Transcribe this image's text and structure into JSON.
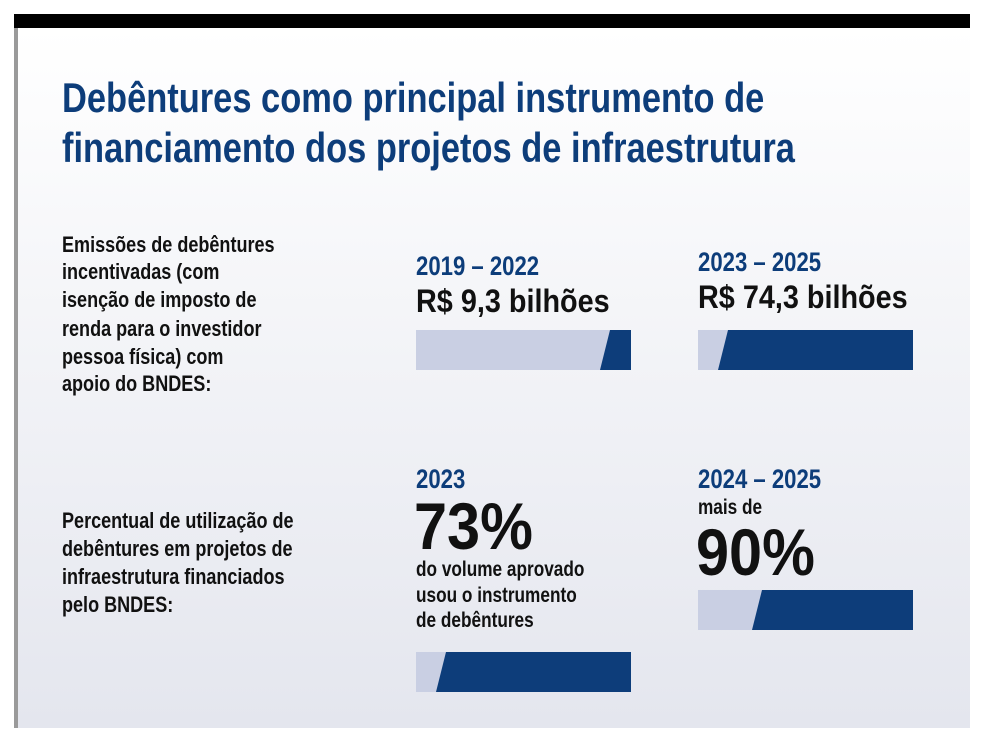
{
  "header": {
    "title": [
      "Debêntures como principal instrumento de",
      "financiamento dos projetos de infraestrutura"
    ]
  },
  "rows": [
    {
      "label": [
        "Emissões de debêntures",
        "incentivadas (com",
        "isenção de imposto de",
        "renda para o investidor",
        "pessoa física) com",
        "apoio do BNDES:"
      ],
      "items": [
        {
          "period": "2019 – 2022",
          "value": "R$ 9,3 bilhões"
        },
        {
          "period": "2023 – 2025",
          "value": "R$ 74,3 bilhões"
        }
      ]
    },
    {
      "label": [
        "Percentual de utilização de",
        "debêntures em projetos de",
        "infraestrutura financiados",
        "pelo BNDES:"
      ],
      "items": [
        {
          "period": "2023",
          "value": "73%",
          "note": [
            "do volume aprovado",
            "usou o instrumento",
            "de debêntures"
          ]
        },
        {
          "period": "2024 – 2025",
          "prefix": "mais de",
          "value": "90%"
        }
      ]
    }
  ]
}
